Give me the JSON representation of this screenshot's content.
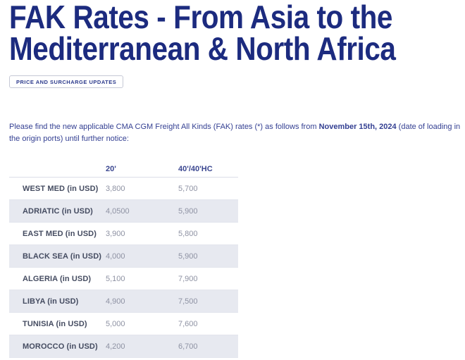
{
  "page": {
    "title": "FAK Rates - From Asia to the Mediterranean & North Africa",
    "badge": "PRICE AND SURCHARGE UPDATES"
  },
  "intro": {
    "before_bold": "Please find the new applicable CMA CGM Freight All Kinds (FAK) rates (*) as follows from ",
    "bold": "November 15th, 2024",
    "after_bold": " (date of loading in the origin ports) until further notice:"
  },
  "table": {
    "headers": [
      "",
      "20'",
      "40'/40'HC"
    ],
    "rows": [
      {
        "label": "WEST MED (in USD)",
        "rate_20": "3,800",
        "rate_40": "5,700"
      },
      {
        "label": "ADRIATIC (in USD)",
        "rate_20": "4,0500",
        "rate_40": "5,900"
      },
      {
        "label": "EAST MED (in USD)",
        "rate_20": "3,900",
        "rate_40": "5,800"
      },
      {
        "label": "BLACK SEA (in USD)",
        "rate_20": "4,000",
        "rate_40": "5,900"
      },
      {
        "label": "ALGERIA (in USD)",
        "rate_20": "5,100",
        "rate_40": "7,900"
      },
      {
        "label": "LIBYA (in USD)",
        "rate_20": "4,900",
        "rate_40": "7,500"
      },
      {
        "label": "TUNISIA (in USD)",
        "rate_20": "5,000",
        "rate_40": "7,600"
      },
      {
        "label": "MOROCCO (in USD)",
        "rate_20": "4,200",
        "rate_40": "6,700"
      }
    ]
  },
  "colors": {
    "title_navy": "#1c2b7f",
    "body_text_navy": "#333f92",
    "table_header_navy": "#3a4690",
    "row_label_slate": "#454c61",
    "value_gray": "#8e92a3",
    "alt_row_background": "#e7e9f0"
  }
}
